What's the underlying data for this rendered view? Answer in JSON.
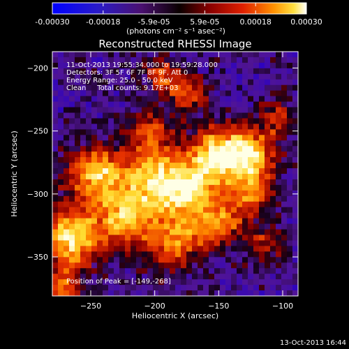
{
  "colorbar": {
    "ticks": [
      "-0.00030",
      "-0.00018",
      "-5.9e-05",
      "5.9e-05",
      "0.00018",
      "0.00030"
    ],
    "unit_label": "(photons cm⁻² s⁻¹ asec⁻²)"
  },
  "chart_data": {
    "type": "heatmap",
    "title": "Reconstructed RHESSI Image",
    "xlabel": "Heliocentric X (arcsec)",
    "ylabel": "Heliocentric Y (arcsec)",
    "xlim": [
      -280,
      -88
    ],
    "ylim": [
      -381,
      -187
    ],
    "xticks": [
      -250,
      -200,
      -150,
      -100
    ],
    "yticks": [
      -200,
      -250,
      -300,
      -350
    ],
    "value_range": [
      -0.0003,
      0.0003
    ],
    "colormap": "blue-purple-red-orange-yellow-white",
    "peak": {
      "x": -149,
      "y": -268
    },
    "annotations": {
      "time_range": "11-Oct-2013 19:55:34.000 to 19:59:28.000",
      "detectors": "Detectors: 3F 5F 6F 7F 8F 9F, Att 0",
      "energy": "Energy Range: 25.0 - 50.0 keV",
      "algorithm": "Clean     Total counts: 9.17E+03",
      "peak_text": "Position of Peak = [-149,-268]"
    }
  },
  "footer": {
    "date": "13-Oct-2013 16:44"
  }
}
